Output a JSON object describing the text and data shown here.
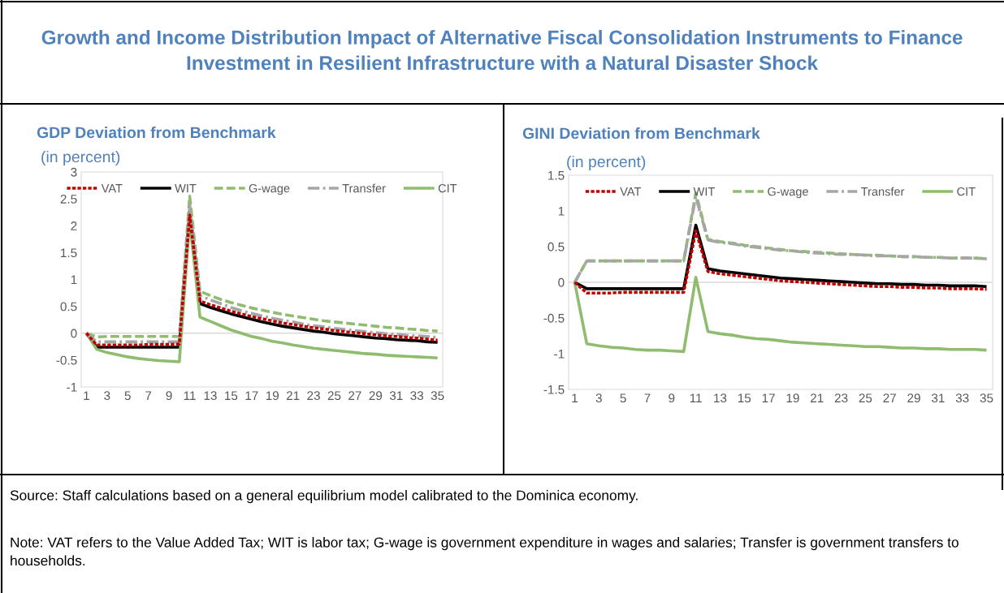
{
  "chart_data": [
    {
      "type": "line",
      "title": "GDP Deviation from Benchmark",
      "subtitle": "(in percent)",
      "annotations": [
        "Growth and Income Distribution Impact of Alternative Fiscal Consolidation Instruments to Finance Investment in Resilient Infrastructure with a Natural Disaster Shock",
        "Source: Staff calculations based on a general equilibrium model calibrated to the Dominica economy.",
        "Note: VAT refers to the Value Added Tax; WIT is labor tax; G-wage is government expenditure in wages and salaries; Transfer is government transfers to households."
      ],
      "categories": [
        "1",
        null,
        "3",
        null,
        "5",
        null,
        "7",
        null,
        "9",
        null,
        "11",
        null,
        "13",
        null,
        "15",
        null,
        "17",
        null,
        "19",
        null,
        "21",
        null,
        "23",
        null,
        "25",
        null,
        "27",
        null,
        "29",
        null,
        "31",
        null,
        "33",
        null,
        "35"
      ],
      "ylim": [
        -1,
        3
      ],
      "yticks": [
        -1,
        -0.5,
        0,
        0.5,
        1,
        1.5,
        2,
        2.5,
        3
      ],
      "grid": false,
      "legend": "top",
      "ref_lines": [
        {
          "axis": "y",
          "value": 0,
          "color": "#d9d9d9"
        }
      ],
      "series": [
        {
          "name": "VAT",
          "color": "#c00000",
          "line_style": "dotted",
          "values": [
            0,
            -0.22,
            -0.22,
            -0.22,
            -0.22,
            -0.22,
            -0.21,
            -0.21,
            -0.21,
            -0.2,
            2.2,
            0.6,
            0.53,
            0.47,
            0.41,
            0.36,
            0.31,
            0.27,
            0.23,
            0.19,
            0.16,
            0.13,
            0.1,
            0.08,
            0.05,
            0.03,
            0.01,
            -0.01,
            -0.03,
            -0.05,
            -0.06,
            -0.08,
            -0.09,
            -0.11,
            -0.13
          ]
        },
        {
          "name": "WIT",
          "color": "#000000",
          "line_style": "solid",
          "values": [
            0,
            -0.26,
            -0.26,
            -0.26,
            -0.26,
            -0.26,
            -0.26,
            -0.26,
            -0.26,
            -0.26,
            2.25,
            0.55,
            0.48,
            0.42,
            0.36,
            0.31,
            0.26,
            0.21,
            0.17,
            0.13,
            0.1,
            0.07,
            0.04,
            0.02,
            -0.01,
            -0.03,
            -0.05,
            -0.07,
            -0.09,
            -0.1,
            -0.12,
            -0.13,
            -0.14,
            -0.16,
            -0.17
          ]
        },
        {
          "name": "G-wage",
          "color": "#8fbc6f",
          "line_style": "dashed",
          "values": [
            0,
            -0.07,
            -0.06,
            -0.06,
            -0.06,
            -0.06,
            -0.06,
            -0.06,
            -0.06,
            -0.06,
            2.55,
            0.78,
            0.7,
            0.63,
            0.57,
            0.52,
            0.47,
            0.43,
            0.39,
            0.35,
            0.32,
            0.29,
            0.26,
            0.23,
            0.21,
            0.19,
            0.17,
            0.15,
            0.13,
            0.11,
            0.1,
            0.08,
            0.07,
            0.05,
            0.04
          ]
        },
        {
          "name": "Transfer",
          "color": "#a6a6a6",
          "line_style": "dashdot",
          "values": [
            0,
            -0.16,
            -0.16,
            -0.16,
            -0.16,
            -0.16,
            -0.16,
            -0.16,
            -0.16,
            -0.16,
            2.4,
            0.7,
            0.62,
            0.55,
            0.48,
            0.42,
            0.37,
            0.32,
            0.28,
            0.24,
            0.21,
            0.17,
            0.14,
            0.12,
            0.09,
            0.07,
            0.05,
            0.03,
            0.01,
            -0.01,
            -0.02,
            -0.04,
            -0.05,
            -0.06,
            -0.08
          ]
        },
        {
          "name": "CIT",
          "color": "#8fbc6f",
          "line_style": "solid",
          "values": [
            0,
            -0.3,
            -0.36,
            -0.4,
            -0.44,
            -0.47,
            -0.49,
            -0.51,
            -0.52,
            -0.53,
            2.1,
            0.3,
            0.22,
            0.14,
            0.06,
            0.0,
            -0.06,
            -0.1,
            -0.15,
            -0.18,
            -0.22,
            -0.25,
            -0.28,
            -0.3,
            -0.32,
            -0.34,
            -0.36,
            -0.38,
            -0.39,
            -0.41,
            -0.42,
            -0.43,
            -0.44,
            -0.45,
            -0.46
          ]
        }
      ]
    },
    {
      "type": "line",
      "title": "GINI Deviation from Benchmark",
      "subtitle": "(in percent)",
      "categories": [
        "1",
        null,
        "3",
        null,
        "5",
        null,
        "7",
        null,
        "9",
        null,
        "11",
        null,
        "13",
        null,
        "15",
        null,
        "17",
        null,
        "19",
        null,
        "21",
        null,
        "23",
        null,
        "25",
        null,
        "27",
        null,
        "29",
        null,
        "31",
        null,
        "33",
        null,
        "35"
      ],
      "ylim": [
        -1.5,
        1.5
      ],
      "yticks": [
        -1.5,
        -1,
        -0.5,
        0,
        0.5,
        1,
        1.5
      ],
      "grid": false,
      "legend": "top",
      "ref_lines": [
        {
          "axis": "y",
          "value": 0,
          "color": "#d9d9d9"
        }
      ],
      "series": [
        {
          "name": "VAT",
          "color": "#c00000",
          "line_style": "dotted",
          "values": [
            0,
            -0.15,
            -0.15,
            -0.15,
            -0.14,
            -0.14,
            -0.14,
            -0.14,
            -0.14,
            -0.14,
            0.72,
            0.15,
            0.12,
            0.1,
            0.08,
            0.06,
            0.04,
            0.02,
            0.01,
            0.0,
            -0.01,
            -0.02,
            -0.03,
            -0.04,
            -0.05,
            -0.06,
            -0.06,
            -0.07,
            -0.07,
            -0.08,
            -0.08,
            -0.09,
            -0.09,
            -0.09,
            -0.1
          ]
        },
        {
          "name": "WIT",
          "color": "#000000",
          "line_style": "solid",
          "values": [
            0,
            -0.09,
            -0.09,
            -0.09,
            -0.09,
            -0.09,
            -0.09,
            -0.09,
            -0.09,
            -0.09,
            0.8,
            0.19,
            0.16,
            0.14,
            0.12,
            0.1,
            0.08,
            0.06,
            0.05,
            0.04,
            0.03,
            0.02,
            0.01,
            0.0,
            -0.01,
            -0.02,
            -0.02,
            -0.03,
            -0.03,
            -0.04,
            -0.04,
            -0.05,
            -0.05,
            -0.05,
            -0.06
          ]
        },
        {
          "name": "G-wage",
          "color": "#8fbc6f",
          "line_style": "dashed",
          "values": [
            0,
            0.3,
            0.3,
            0.3,
            0.3,
            0.3,
            0.3,
            0.3,
            0.3,
            0.3,
            1.25,
            0.6,
            0.57,
            0.55,
            0.52,
            0.5,
            0.48,
            0.46,
            0.44,
            0.43,
            0.42,
            0.41,
            0.4,
            0.39,
            0.38,
            0.38,
            0.37,
            0.36,
            0.36,
            0.35,
            0.35,
            0.34,
            0.34,
            0.34,
            0.33
          ]
        },
        {
          "name": "Transfer",
          "color": "#a6a6a6",
          "line_style": "dashdot",
          "values": [
            0,
            0.3,
            0.3,
            0.3,
            0.3,
            0.3,
            0.3,
            0.3,
            0.3,
            0.3,
            1.2,
            0.59,
            0.56,
            0.54,
            0.51,
            0.49,
            0.47,
            0.45,
            0.44,
            0.42,
            0.41,
            0.4,
            0.39,
            0.39,
            0.38,
            0.37,
            0.37,
            0.36,
            0.36,
            0.35,
            0.35,
            0.34,
            0.34,
            0.34,
            0.33
          ]
        },
        {
          "name": "CIT",
          "color": "#8fbc6f",
          "line_style": "solid",
          "values": [
            0,
            -0.86,
            -0.89,
            -0.91,
            -0.92,
            -0.94,
            -0.95,
            -0.95,
            -0.96,
            -0.97,
            0.07,
            -0.69,
            -0.72,
            -0.74,
            -0.77,
            -0.79,
            -0.8,
            -0.82,
            -0.84,
            -0.85,
            -0.86,
            -0.87,
            -0.88,
            -0.89,
            -0.9,
            -0.9,
            -0.91,
            -0.92,
            -0.92,
            -0.93,
            -0.93,
            -0.94,
            -0.94,
            -0.94,
            -0.95
          ]
        }
      ]
    }
  ]
}
